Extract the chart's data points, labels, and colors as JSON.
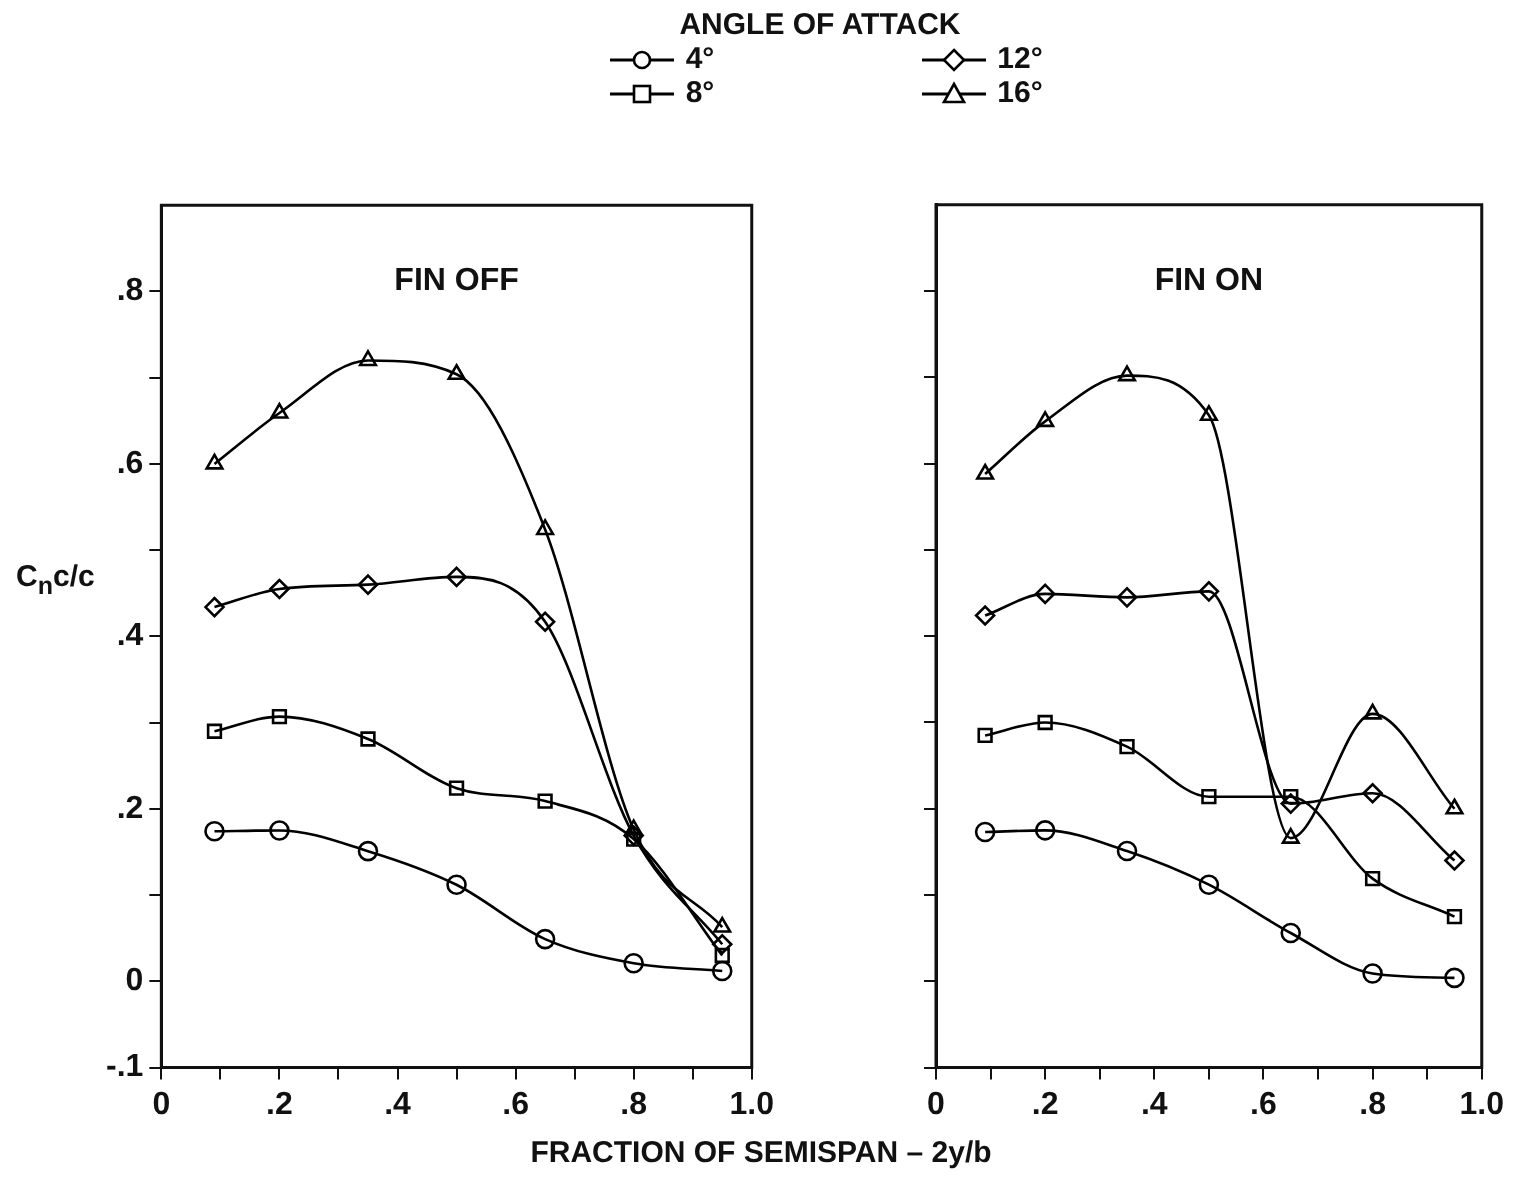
{
  "chart_data": [
    {
      "type": "line",
      "title": "FIN OFF",
      "legend_title": "ANGLE OF ATTACK",
      "legend": "top",
      "xlabel": "FRACTION OF SEMISPAN – 2y/b",
      "ylabel": "C$_{n}$c/c",
      "grid": false,
      "line_style": "solid",
      "xlim": [
        0,
        1
      ],
      "ylim": [
        -0.1,
        0.9
      ],
      "xticks": [
        0,
        {
          "value": 0.1,
          "label": null
        },
        {
          "value": 0.2,
          "label": ".2"
        },
        {
          "value": 0.3,
          "label": null
        },
        {
          "value": 0.4,
          "label": ".4"
        },
        {
          "value": 0.5,
          "label": null
        },
        {
          "value": 0.6,
          "label": ".6"
        },
        {
          "value": 0.7,
          "label": null
        },
        {
          "value": 0.8,
          "label": ".8"
        },
        {
          "value": 0.9,
          "label": null
        },
        {
          "value": 1,
          "label": "1.0"
        }
      ],
      "yticks": [
        {
          "value": -0.1,
          "label": "-.1"
        },
        0,
        {
          "value": 0.1,
          "label": null
        },
        {
          "value": 0.2,
          "label": ".2"
        },
        {
          "value": 0.3,
          "label": null
        },
        {
          "value": 0.4,
          "label": ".4"
        },
        {
          "value": 0.5,
          "label": null
        },
        {
          "value": 0.6,
          "label": ".6"
        },
        {
          "value": 0.7,
          "label": null
        },
        {
          "value": 0.8,
          "label": ".8"
        }
      ],
      "x": [
        0.09,
        0.2,
        0.35,
        0.5,
        0.65,
        0.8,
        0.95
      ],
      "series": [
        {
          "name": "4°",
          "color": "#000000",
          "marker": "circle",
          "values": [
            0.174,
            0.175,
            0.151,
            0.112,
            0.049,
            0.021,
            0.012
          ]
        },
        {
          "name": "8°",
          "color": "#000000",
          "marker": "square",
          "values": [
            0.29,
            0.307,
            0.281,
            0.224,
            0.209,
            0.165,
            0.03
          ]
        },
        {
          "name": "12°",
          "color": "#000000",
          "marker": "diamond",
          "values": [
            0.434,
            0.455,
            0.46,
            0.469,
            0.417,
            0.169,
            0.043
          ]
        },
        {
          "name": "16°",
          "color": "#000000",
          "marker": "triangle",
          "values": [
            0.6,
            0.659,
            0.72,
            0.704,
            0.524,
            0.176,
            0.063
          ]
        }
      ]
    },
    {
      "type": "line",
      "title": "FIN ON",
      "legend": false,
      "grid": false,
      "line_style": "solid",
      "tick_labels": "x",
      "xlim": [
        0,
        1
      ],
      "ylim": [
        -0.1,
        0.9
      ],
      "xticks": [
        0,
        {
          "value": 0.1,
          "label": null
        },
        {
          "value": 0.2,
          "label": ".2"
        },
        {
          "value": 0.3,
          "label": null
        },
        {
          "value": 0.4,
          "label": ".4"
        },
        {
          "value": 0.5,
          "label": null
        },
        {
          "value": 0.6,
          "label": ".6"
        },
        {
          "value": 0.7,
          "label": null
        },
        {
          "value": 0.8,
          "label": ".8"
        },
        {
          "value": 0.9,
          "label": null
        },
        {
          "value": 1,
          "label": "1.0"
        }
      ],
      "yticks": [
        {
          "value": -0.1,
          "label": null
        },
        {
          "value": 0,
          "label": null
        },
        {
          "value": 0.1,
          "label": null
        },
        {
          "value": 0.2,
          "label": null
        },
        {
          "value": 0.3,
          "label": null
        },
        {
          "value": 0.4,
          "label": null
        },
        {
          "value": 0.5,
          "label": null
        },
        {
          "value": 0.6,
          "label": null
        },
        {
          "value": 0.7,
          "label": null
        },
        {
          "value": 0.8,
          "label": null
        }
      ],
      "x": [
        0.09,
        0.2,
        0.35,
        0.5,
        0.65,
        0.8,
        0.95
      ],
      "series": [
        {
          "color": "#000000",
          "marker": "circle",
          "values": [
            0.173,
            0.175,
            0.151,
            0.112,
            0.056,
            0.009,
            0.004
          ]
        },
        {
          "color": "#000000",
          "marker": "square",
          "values": [
            0.285,
            0.3,
            0.272,
            0.214,
            0.214,
            0.119,
            0.075
          ]
        },
        {
          "color": "#000000",
          "marker": "diamond",
          "values": [
            0.424,
            0.449,
            0.445,
            0.452,
            0.206,
            0.218,
            0.14
          ]
        },
        {
          "color": "#000000",
          "marker": "triangle",
          "values": [
            0.588,
            0.649,
            0.702,
            0.656,
            0.166,
            0.31,
            0.2
          ]
        }
      ]
    }
  ]
}
